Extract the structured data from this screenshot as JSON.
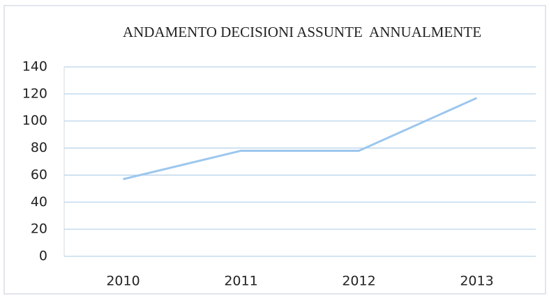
{
  "chart_data": {
    "type": "line",
    "title": "ANDAMENTO DECISIONI ASSUNTE  ANNUALMENTE",
    "categories": [
      "2010",
      "2011",
      "2012",
      "2013"
    ],
    "values": [
      57,
      78,
      78,
      117
    ],
    "color": "#9cc7ee",
    "ylim": [
      0,
      140
    ],
    "yticks": [
      0,
      20,
      40,
      60,
      80,
      100,
      120,
      140
    ],
    "grid": true
  }
}
